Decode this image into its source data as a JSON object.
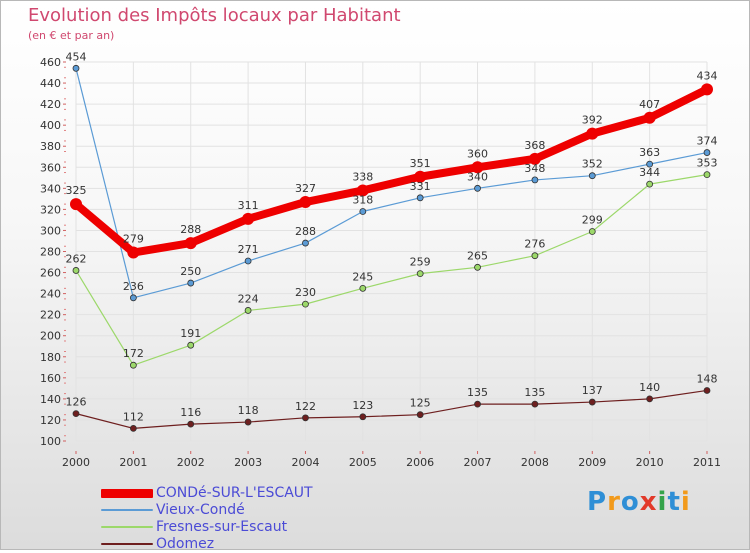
{
  "title": "Evolution des Impôts locaux par Habitant",
  "subtitle": "(en € et par an)",
  "logo": {
    "letters": [
      "P",
      "r",
      "o",
      "x",
      "i",
      "t",
      "i"
    ],
    "colors": [
      "#2f8fd6",
      "#f29a1b",
      "#2f8fd6",
      "#e23a2a",
      "#35a34a",
      "#2f8fd6",
      "#f29a1b"
    ]
  },
  "chart_data": {
    "type": "line",
    "categories": [
      "2000",
      "2001",
      "2002",
      "2003",
      "2004",
      "2005",
      "2006",
      "2007",
      "2008",
      "2009",
      "2010",
      "2011"
    ],
    "ylim": [
      100,
      460
    ],
    "yticks": [
      100,
      120,
      140,
      160,
      180,
      200,
      220,
      240,
      260,
      280,
      300,
      320,
      340,
      360,
      380,
      400,
      420,
      440,
      460
    ],
    "grid": true,
    "legend_position": "bottom-left",
    "series": [
      {
        "name": "CONDé-SUR-L'ESCAUT",
        "color": "#ee0000",
        "values": [
          325,
          279,
          288,
          311,
          327,
          338,
          351,
          360,
          368,
          392,
          407,
          434
        ]
      },
      {
        "name": "Vieux-Condé",
        "color": "#5b9bd5",
        "values": [
          454,
          236,
          250,
          271,
          288,
          318,
          331,
          340,
          348,
          352,
          363,
          374
        ]
      },
      {
        "name": "Fresnes-sur-Escaut",
        "color": "#9cd86a",
        "values": [
          262,
          172,
          191,
          224,
          230,
          245,
          259,
          265,
          276,
          299,
          344,
          353
        ]
      },
      {
        "name": "Odomez",
        "color": "#6e1f1f",
        "values": [
          126,
          112,
          116,
          118,
          122,
          123,
          125,
          135,
          135,
          137,
          140,
          148
        ]
      }
    ]
  }
}
